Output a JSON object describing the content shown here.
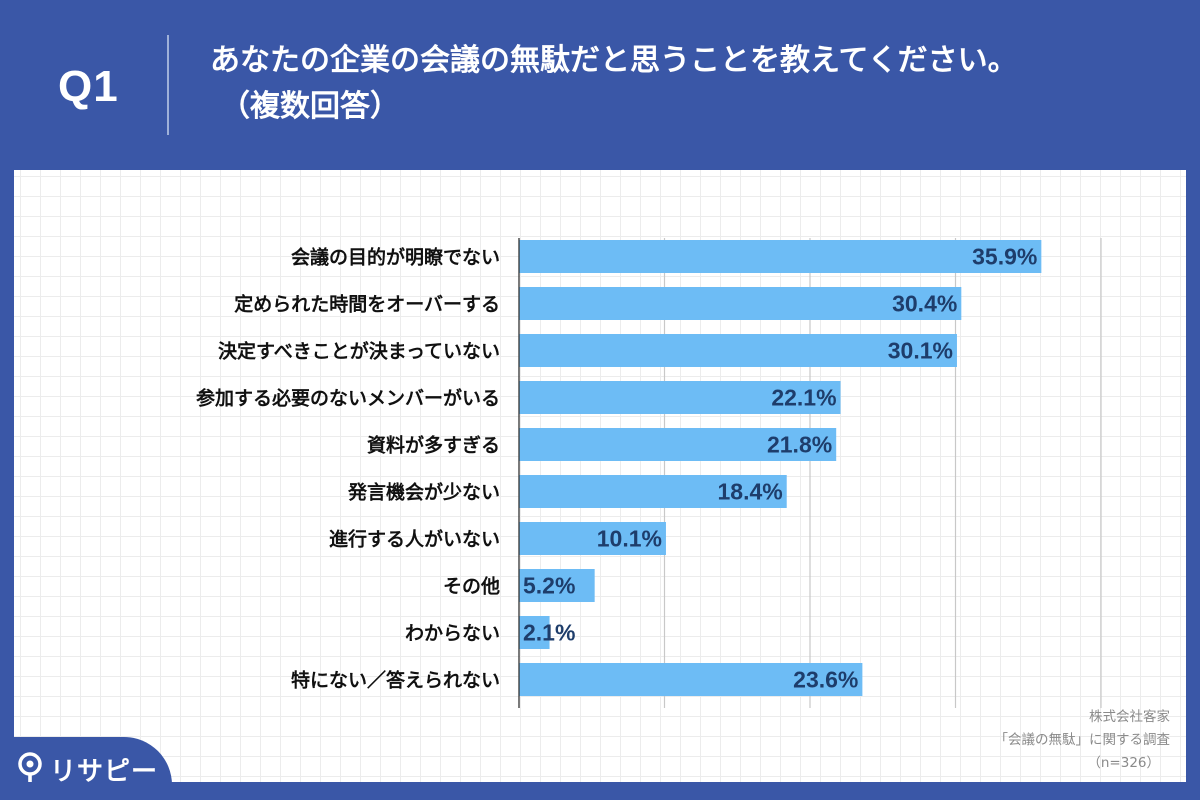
{
  "header": {
    "q_label": "Q1",
    "title": "あなたの企業の会議の無駄だと思うことを教えてください。",
    "subtitle": "（複数回答）"
  },
  "source": {
    "line1": "株式会社客家",
    "line2": "「会議の無駄」に関する調査",
    "line3": "（n=326）"
  },
  "logo": {
    "text": "リサピー"
  },
  "colors": {
    "background": "#3a57a7",
    "bar": "#6dbcf5",
    "value_text": "#1e3d6b"
  },
  "chart_data": {
    "type": "bar",
    "orientation": "horizontal",
    "categories": [
      "会議の目的が明瞭でない",
      "定められた時間をオーバーする",
      "決定すべきことが決まっていない",
      "参加する必要のないメンバーがいる",
      "資料が多すぎる",
      "発言機会が少ない",
      "進行する人がいない",
      "その他",
      "わからない",
      "特にない／答えられない"
    ],
    "values": [
      35.9,
      30.4,
      30.1,
      22.1,
      21.8,
      18.4,
      10.1,
      5.2,
      2.1,
      23.6
    ],
    "value_labels": [
      "35.9%",
      "30.4%",
      "30.1%",
      "22.1%",
      "21.8%",
      "18.4%",
      "10.1%",
      "5.2%",
      "2.1%",
      "23.6%"
    ],
    "xlim": [
      0,
      40
    ],
    "gridlines": [
      10,
      20,
      30,
      40
    ],
    "unit": "%"
  }
}
